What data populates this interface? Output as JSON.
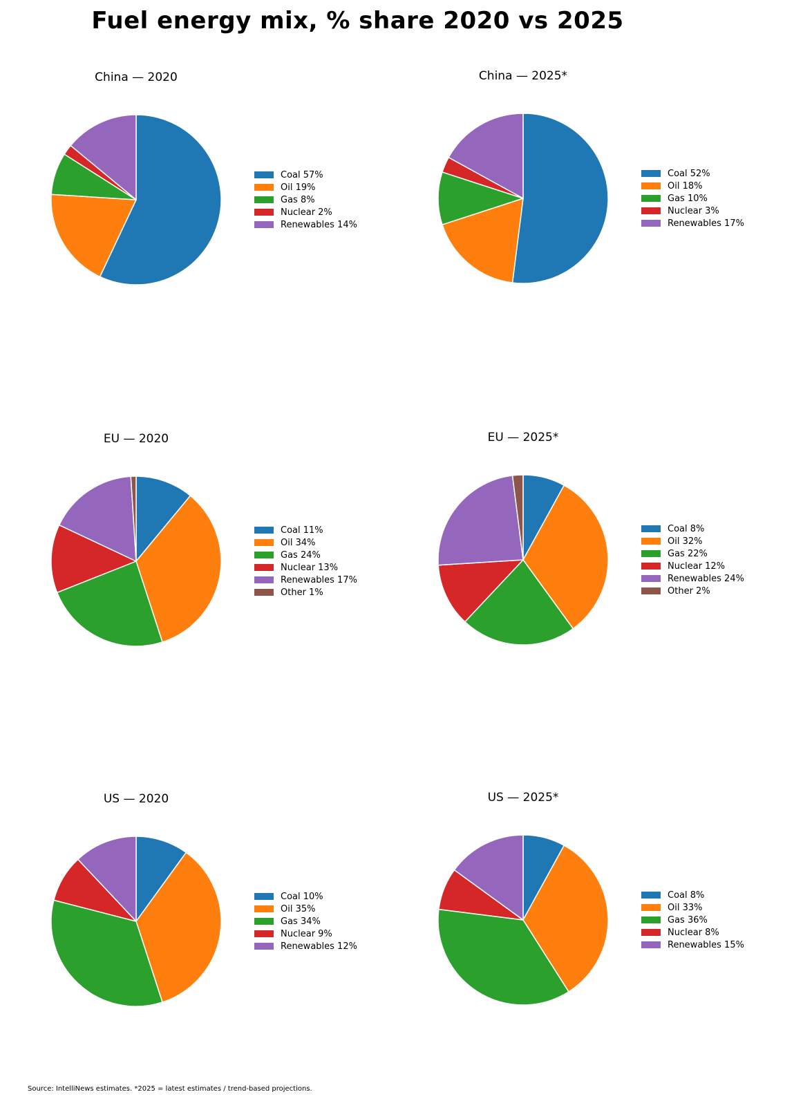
{
  "title": "Fuel energy mix, % share 2020 vs 2025",
  "footer": "Source: IntelliNews estimates. *2025 = latest estimates / trend-based projections.",
  "palette": {
    "coal": "#1f77b4",
    "oil": "#ff7f0e",
    "gas": "#2ca02c",
    "nuclear": "#d62728",
    "renewables": "#9467bd",
    "other": "#8c564b"
  },
  "chart_data": [
    {
      "type": "pie",
      "title": "China — 2020",
      "labels": [
        "Coal",
        "Oil",
        "Gas",
        "Nuclear",
        "Renewables"
      ],
      "values": [
        57,
        19,
        8,
        2,
        14
      ],
      "colors": [
        "#1f77b4",
        "#ff7f0e",
        "#2ca02c",
        "#d62728",
        "#9467bd"
      ],
      "legend_position": "right",
      "start_angle": "top",
      "direction": "clockwise"
    },
    {
      "type": "pie",
      "title": "China — 2025*",
      "labels": [
        "Coal",
        "Oil",
        "Gas",
        "Nuclear",
        "Renewables"
      ],
      "values": [
        52,
        18,
        10,
        3,
        17
      ],
      "colors": [
        "#1f77b4",
        "#ff7f0e",
        "#2ca02c",
        "#d62728",
        "#9467bd"
      ],
      "legend_position": "right",
      "start_angle": "top",
      "direction": "clockwise"
    },
    {
      "type": "pie",
      "title": "EU — 2020",
      "labels": [
        "Coal",
        "Oil",
        "Gas",
        "Nuclear",
        "Renewables",
        "Other"
      ],
      "values": [
        11,
        34,
        24,
        13,
        17,
        1
      ],
      "colors": [
        "#1f77b4",
        "#ff7f0e",
        "#2ca02c",
        "#d62728",
        "#9467bd",
        "#8c564b"
      ],
      "legend_position": "right",
      "start_angle": "top",
      "direction": "clockwise"
    },
    {
      "type": "pie",
      "title": "EU — 2025*",
      "labels": [
        "Coal",
        "Oil",
        "Gas",
        "Nuclear",
        "Renewables",
        "Other"
      ],
      "values": [
        8,
        32,
        22,
        12,
        24,
        2
      ],
      "colors": [
        "#1f77b4",
        "#ff7f0e",
        "#2ca02c",
        "#d62728",
        "#9467bd",
        "#8c564b"
      ],
      "legend_position": "right",
      "start_angle": "top",
      "direction": "clockwise"
    },
    {
      "type": "pie",
      "title": "US — 2020",
      "labels": [
        "Coal",
        "Oil",
        "Gas",
        "Nuclear",
        "Renewables"
      ],
      "values": [
        10,
        35,
        34,
        9,
        12
      ],
      "colors": [
        "#1f77b4",
        "#ff7f0e",
        "#2ca02c",
        "#d62728",
        "#9467bd"
      ],
      "legend_position": "right",
      "start_angle": "top",
      "direction": "clockwise"
    },
    {
      "type": "pie",
      "title": "US — 2025*",
      "labels": [
        "Coal",
        "Oil",
        "Gas",
        "Nuclear",
        "Renewables"
      ],
      "values": [
        8,
        33,
        36,
        8,
        15
      ],
      "colors": [
        "#1f77b4",
        "#ff7f0e",
        "#2ca02c",
        "#d62728",
        "#9467bd"
      ],
      "legend_position": "right",
      "start_angle": "top",
      "direction": "clockwise"
    }
  ]
}
